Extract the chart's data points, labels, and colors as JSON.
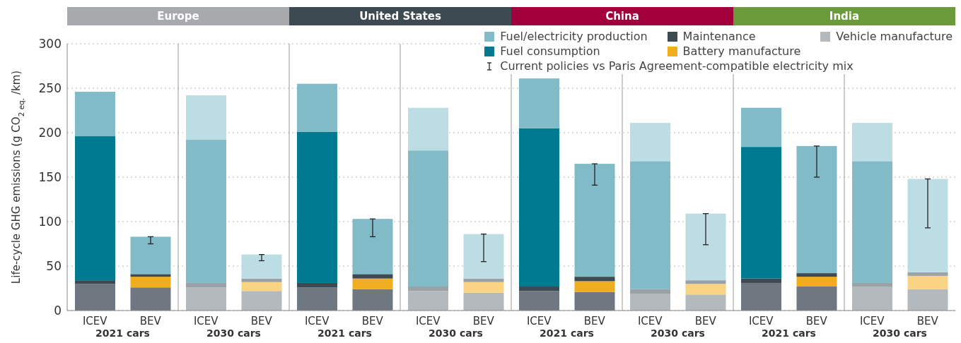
{
  "chart_data": {
    "type": "bar",
    "stacked": true,
    "ylabel": "Life-cycle GHG emissions (g CO$_{2 eq.}$/km)",
    "categories": [
      "ICEV",
      "BEV",
      "ICEV",
      "BEV",
      "ICEV",
      "BEV",
      "ICEV",
      "BEV",
      "ICEV",
      "BEV",
      "ICEV",
      "BEV",
      "ICEV",
      "BEV",
      "ICEV",
      "BEV"
    ],
    "series": [
      {
        "name": "Vehicle manufacture",
        "color": "#b4b9bd",
        "colors": [
          "#6f7780",
          "#6f7780",
          "#b4b9bd",
          "#b4b9bd",
          "#6f7780",
          "#6f7780",
          "#b4b9bd",
          "#b4b9bd",
          "#6f7780",
          "#6f7780",
          "#b4b9bd",
          "#b4b9bd",
          "#6f7780",
          "#6f7780",
          "#b4b9bd",
          "#b4b9bd"
        ],
        "values": [
          30,
          26,
          26,
          22,
          26,
          24,
          22,
          20,
          22,
          21,
          19,
          18,
          31,
          27,
          27,
          24
        ]
      },
      {
        "name": "Battery manufacture",
        "color": "#f0ad1e",
        "colors": [
          null,
          "#f0ad1e",
          null,
          "#f7d382",
          null,
          "#f0ad1e",
          null,
          "#f7d382",
          null,
          "#f0ad1e",
          null,
          "#f7d382",
          null,
          "#f0ad1e",
          null,
          "#f7d382"
        ],
        "values": [
          null,
          12,
          null,
          10,
          null,
          12,
          null,
          12,
          null,
          12,
          null,
          12,
          null,
          11,
          null,
          15
        ]
      },
      {
        "name": "Maintenance",
        "color": "#3e4a52",
        "colors": [
          "#3e4a52",
          "#3e4a52",
          "#9aa1a7",
          "#9aa1a7",
          "#3e4a52",
          "#3e4a52",
          "#9aa1a7",
          "#9aa1a7",
          "#3e4a52",
          "#3e4a52",
          "#9aa1a7",
          "#9aa1a7",
          "#3e4a52",
          "#3e4a52",
          "#9aa1a7",
          "#9aa1a7"
        ],
        "values": [
          4,
          3,
          5,
          4,
          5,
          5,
          5,
          4,
          5,
          5,
          5,
          4,
          5,
          4,
          4,
          4
        ]
      },
      {
        "name": "Fuel consumption",
        "color": "#007a91",
        "colors": [
          "#007a91",
          null,
          "#80bbc7",
          null,
          "#007a91",
          null,
          "#80bbc7",
          null,
          "#007a91",
          null,
          "#80bbc7",
          null,
          "#007a91",
          null,
          "#80bbc7",
          null
        ],
        "values": [
          162,
          null,
          161,
          null,
          170,
          null,
          153,
          null,
          178,
          null,
          144,
          null,
          148,
          null,
          137,
          null
        ]
      },
      {
        "name": "Fuel/electricity production",
        "color": "#80bbc7",
        "colors": [
          "#80bbc7",
          "#80bbc7",
          "#bcdde3",
          "#bcdde3",
          "#80bbc7",
          "#80bbc7",
          "#bcdde3",
          "#bcdde3",
          "#80bbc7",
          "#80bbc7",
          "#bcdde3",
          "#bcdde3",
          "#80bbc7",
          "#80bbc7",
          "#bcdde3",
          "#bcdde3"
        ],
        "values": [
          50,
          42,
          50,
          27,
          54,
          62,
          48,
          50,
          56,
          127,
          43,
          75,
          44,
          143,
          43,
          105
        ],
        "errors": [
          null,
          [
            75,
            83
          ],
          null,
          [
            56,
            63
          ],
          null,
          [
            83,
            103
          ],
          null,
          [
            55,
            86
          ],
          null,
          [
            141,
            165
          ],
          null,
          [
            74,
            109
          ],
          null,
          [
            150,
            185
          ],
          null,
          [
            93,
            148
          ]
        ]
      }
    ],
    "ylim": [
      0,
      300
    ],
    "yticks": [
      0,
      50,
      100,
      150,
      200,
      250,
      300
    ],
    "grid": "y",
    "legend": "top right",
    "annotations": [
      "Europe",
      "United States",
      "China",
      "India",
      "2021 cars",
      "2030 cars",
      "2021 cars",
      "2030 cars",
      "2021 cars",
      "2030 cars",
      "2021 cars",
      "2030 cars",
      "Current policies vs Paris Agreement-compatible electricity mix"
    ]
  }
}
